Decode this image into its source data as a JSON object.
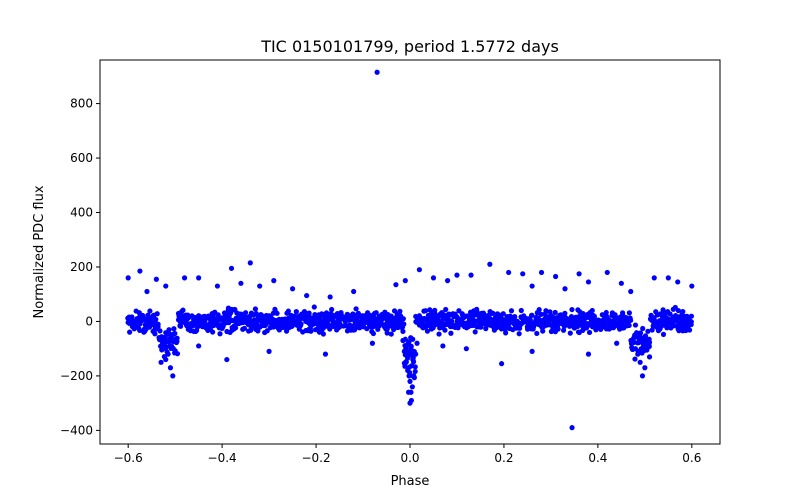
{
  "chart_data": {
    "type": "scatter",
    "title": "TIC 0150101799, period 1.5772 days",
    "xlabel": "Phase",
    "ylabel": "Normalized PDC flux",
    "xlim": [
      -0.66,
      0.66
    ],
    "ylim": [
      -450,
      960
    ],
    "xticks": [
      -0.6,
      -0.4,
      -0.2,
      0.0,
      0.2,
      0.4,
      0.6
    ],
    "xtick_labels": [
      "−0.6",
      "−0.4",
      "−0.2",
      "0.0",
      "0.2",
      "0.4",
      "0.6"
    ],
    "yticks": [
      -400,
      -200,
      0,
      200,
      400,
      600,
      800
    ],
    "ytick_labels": [
      "−400",
      "−200",
      "0",
      "200",
      "400",
      "600",
      "800"
    ],
    "marker_color": "#0000ff",
    "series": [
      {
        "name": "flux",
        "points": [
          [
            -0.07,
            915
          ],
          [
            0.345,
            -390
          ],
          [
            0.195,
            -155
          ],
          [
            -0.505,
            -200
          ],
          [
            0.495,
            -200
          ],
          [
            -0.34,
            215
          ],
          [
            0.17,
            210
          ],
          [
            -0.38,
            195
          ],
          [
            0.02,
            190
          ],
          [
            -0.575,
            185
          ],
          [
            0.21,
            180
          ],
          [
            0.28,
            180
          ],
          [
            0.36,
            175
          ],
          [
            0.42,
            180
          ],
          [
            0.1,
            170
          ],
          [
            0.13,
            170
          ],
          [
            0.24,
            175
          ],
          [
            0.31,
            165
          ],
          [
            -0.29,
            150
          ],
          [
            -0.45,
            160
          ],
          [
            -0.48,
            160
          ],
          [
            -0.54,
            155
          ],
          [
            -0.6,
            160
          ],
          [
            0.52,
            160
          ],
          [
            0.55,
            160
          ],
          [
            0.57,
            145
          ],
          [
            0.6,
            130
          ],
          [
            0.45,
            140
          ],
          [
            0.38,
            145
          ],
          [
            0.05,
            160
          ],
          [
            0.08,
            150
          ],
          [
            -0.01,
            150
          ],
          [
            -0.03,
            135
          ],
          [
            -0.12,
            110
          ],
          [
            -0.17,
            90
          ],
          [
            -0.22,
            95
          ],
          [
            -0.25,
            120
          ],
          [
            -0.32,
            130
          ],
          [
            -0.36,
            140
          ],
          [
            -0.41,
            130
          ],
          [
            -0.52,
            130
          ],
          [
            -0.56,
            110
          ],
          [
            0.26,
            130
          ],
          [
            0.33,
            120
          ],
          [
            0.47,
            110
          ],
          [
            -0.52,
            -140
          ],
          [
            -0.51,
            -170
          ],
          [
            -0.515,
            -120
          ],
          [
            -0.525,
            -100
          ],
          [
            -0.53,
            -150
          ],
          [
            0.49,
            -150
          ],
          [
            0.485,
            -120
          ],
          [
            0.5,
            -170
          ],
          [
            0.51,
            -130
          ],
          [
            0.48,
            -100
          ],
          [
            -0.005,
            -180
          ],
          [
            0.0,
            -300
          ],
          [
            0.003,
            -290
          ],
          [
            -0.003,
            -260
          ],
          [
            0.005,
            -240
          ],
          [
            -0.008,
            -150
          ],
          [
            0.008,
            -200
          ],
          [
            -0.012,
            -110
          ],
          [
            0.012,
            -120
          ],
          [
            0.015,
            -80
          ],
          [
            -0.015,
            -70
          ],
          [
            0.0,
            -220
          ],
          [
            0.002,
            -260
          ],
          [
            -0.002,
            -200
          ],
          [
            0.006,
            -140
          ],
          [
            -0.39,
            -140
          ],
          [
            -0.3,
            -110
          ],
          [
            -0.18,
            -120
          ],
          [
            0.12,
            -100
          ],
          [
            0.26,
            -110
          ],
          [
            0.38,
            -120
          ],
          [
            -0.45,
            -90
          ],
          [
            0.44,
            -80
          ],
          [
            -0.08,
            -80
          ],
          [
            0.07,
            -90
          ]
        ]
      }
    ]
  }
}
